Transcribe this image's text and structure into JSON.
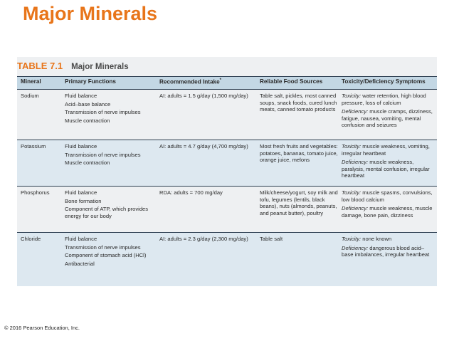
{
  "slide": {
    "title": "Major Minerals"
  },
  "table": {
    "number": "TABLE 7.1",
    "caption": "Major Minerals",
    "headers": {
      "mineral": "Mineral",
      "functions": "Primary Functions",
      "intake": "Recommended Intake",
      "intake_mark": "*",
      "food": "Reliable Food Sources",
      "toxicity": "Toxicity/Deficiency Symptoms"
    },
    "rows": [
      {
        "mineral": "Sodium",
        "functions": [
          "Fluid balance",
          "Acid–base balance",
          "Transmission of nerve impulses",
          "Muscle contraction"
        ],
        "intake": "AI: adults = 1.5 g/day (1,500 mg/day)",
        "food": "Table salt, pickles, most canned soups, snack foods, cured lunch meats, canned tomato products",
        "toxicity_label": "Toxicity:",
        "toxicity_text": " water retention, high blood pressure, loss of calcium",
        "deficiency_label": "Deficiency:",
        "deficiency_text": " muscle cramps, dizziness, fatigue, nausea, vomiting, mental confusion and seizures"
      },
      {
        "mineral": "Potassium",
        "functions": [
          "Fluid balance",
          "Transmission of nerve impulses",
          "Muscle contraction"
        ],
        "intake": "AI: adults = 4.7 g/day (4,700 mg/day)",
        "food": "Most fresh fruits and vegetables: potatoes, bananas, tomato juice, orange juice, melons",
        "toxicity_label": "Toxicity:",
        "toxicity_text": " muscle weakness, vomiting, irregular heartbeat",
        "deficiency_label": "Deficiency:",
        "deficiency_text": " muscle weakness, paralysis, mental confusion, irregular heartbeat"
      },
      {
        "mineral": "Phosphorus",
        "functions": [
          "Fluid balance",
          "Bone formation",
          "Component of ATP, which provides energy for our body"
        ],
        "intake": "RDA: adults = 700 mg/day",
        "food": "Milk/cheese/yogurt, soy milk and tofu, legumes (lentils, black beans), nuts (almonds, peanuts, and peanut butter), poultry",
        "toxicity_label": "Toxicity:",
        "toxicity_text": " muscle spasms, convulsions, low blood calcium",
        "deficiency_label": "Deficiency:",
        "deficiency_text": " muscle weakness, muscle damage, bone pain, dizziness"
      },
      {
        "mineral": "Chloride",
        "functions": [
          "Fluid balance",
          "Transmission of nerve impulses",
          "Component of stomach acid (HCl)",
          "Antibacterial"
        ],
        "intake": "AI: adults = 2.3 g/day (2,300 mg/day)",
        "food": "Table salt",
        "toxicity_label": "Toxicity:",
        "toxicity_text": " none known",
        "deficiency_label": "Deficiency:",
        "deficiency_text": " dangerous blood acid–base imbalances, irregular heartbeat"
      }
    ]
  },
  "footer": {
    "copyright": "© 2016 Pearson Education, Inc."
  }
}
